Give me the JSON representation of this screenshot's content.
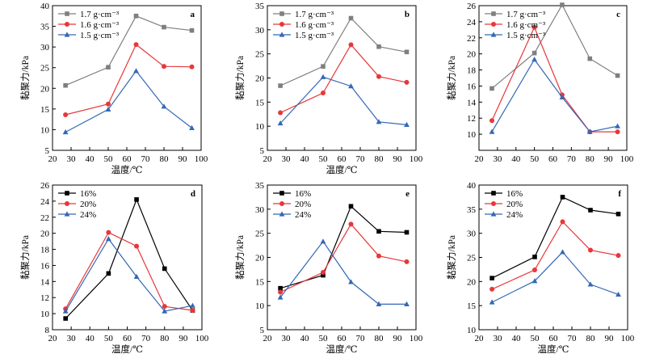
{
  "chart_data": [
    {
      "type": "line",
      "panel": "a",
      "legend_position": "top-left",
      "xlabel": "温度/℃",
      "ylabel": "黏聚力/kPa",
      "xlim": [
        20,
        100
      ],
      "ylim": [
        5,
        40
      ],
      "xticks": [
        20,
        30,
        40,
        50,
        60,
        70,
        80,
        90,
        100
      ],
      "yticks": [
        5,
        10,
        15,
        20,
        25,
        30,
        35,
        40
      ],
      "x": [
        27,
        50,
        65,
        80,
        95
      ],
      "series": [
        {
          "name": "1.7 g·cm⁻³",
          "color": "#7f7f7f",
          "marker": "square",
          "values": [
            20.7,
            25.1,
            37.5,
            34.8,
            34.0
          ]
        },
        {
          "name": "1.6 g·cm⁻³",
          "color": "#e8373a",
          "marker": "circle",
          "values": [
            13.6,
            16.2,
            30.6,
            25.3,
            25.2
          ]
        },
        {
          "name": "1.5 g·cm⁻³",
          "color": "#3468b4",
          "marker": "triangle",
          "values": [
            9.4,
            14.9,
            24.2,
            15.6,
            10.4
          ]
        }
      ]
    },
    {
      "type": "line",
      "panel": "b",
      "legend_position": "top-left",
      "xlabel": "温度/℃",
      "ylabel": "黏聚力/kPa",
      "xlim": [
        20,
        100
      ],
      "ylim": [
        5,
        35
      ],
      "xticks": [
        20,
        30,
        40,
        50,
        60,
        70,
        80,
        90,
        100
      ],
      "yticks": [
        5,
        10,
        15,
        20,
        25,
        30,
        35
      ],
      "x": [
        27,
        50,
        65,
        80,
        95
      ],
      "series": [
        {
          "name": "1.7 g·cm⁻³",
          "color": "#7f7f7f",
          "marker": "square",
          "values": [
            18.4,
            22.4,
            32.4,
            26.5,
            25.4
          ]
        },
        {
          "name": "1.6 g·cm⁻³",
          "color": "#e8373a",
          "marker": "circle",
          "values": [
            12.8,
            16.9,
            26.9,
            20.3,
            19.1
          ]
        },
        {
          "name": "1.5 g·cm⁻³",
          "color": "#3468b4",
          "marker": "triangle",
          "values": [
            10.6,
            20.2,
            18.3,
            10.9,
            10.3
          ]
        }
      ]
    },
    {
      "type": "line",
      "panel": "c",
      "legend_position": "top-left",
      "xlabel": "",
      "ylabel": "黏聚力/kPa",
      "xlim": [
        20,
        100
      ],
      "ylim": [
        8,
        26
      ],
      "xticks": [
        20,
        30,
        40,
        50,
        60,
        70,
        80,
        90,
        100
      ],
      "yticks": [
        10,
        12,
        14,
        16,
        18,
        20,
        22,
        24,
        26
      ],
      "x": [
        27,
        50,
        65,
        80,
        95
      ],
      "series": [
        {
          "name": "1.7 g·cm⁻³",
          "color": "#7f7f7f",
          "marker": "square",
          "values": [
            15.7,
            20.1,
            26.1,
            19.4,
            17.3
          ]
        },
        {
          "name": "1.6 g·cm⁻³",
          "color": "#e8373a",
          "marker": "circle",
          "values": [
            11.7,
            23.3,
            14.9,
            10.3,
            10.3
          ]
        },
        {
          "name": "1.5 g·cm⁻³",
          "color": "#3468b4",
          "marker": "triangle",
          "values": [
            10.3,
            19.3,
            14.6,
            10.3,
            11.0
          ]
        }
      ]
    },
    {
      "type": "line",
      "panel": "d",
      "legend_position": "top-left",
      "xlabel": "温度/℃",
      "ylabel": "黏聚力/kPa",
      "xlim": [
        20,
        100
      ],
      "ylim": [
        8,
        26
      ],
      "xticks": [
        20,
        30,
        40,
        50,
        60,
        70,
        80,
        90,
        100
      ],
      "yticks": [
        8,
        10,
        12,
        14,
        16,
        18,
        20,
        22,
        24,
        26
      ],
      "x": [
        27,
        50,
        65,
        80,
        95
      ],
      "series": [
        {
          "name": "16%",
          "color": "#000000",
          "marker": "square",
          "values": [
            9.4,
            15.0,
            24.2,
            15.6,
            10.4
          ]
        },
        {
          "name": "20%",
          "color": "#e8373a",
          "marker": "circle",
          "values": [
            10.6,
            20.1,
            18.4,
            10.9,
            10.4
          ]
        },
        {
          "name": "24%",
          "color": "#3468b4",
          "marker": "triangle",
          "values": [
            10.3,
            19.3,
            14.6,
            10.3,
            11.0
          ]
        }
      ]
    },
    {
      "type": "line",
      "panel": "e",
      "legend_position": "top-left",
      "xlabel": "温度/℃",
      "ylabel": "黏聚力/kPa",
      "xlim": [
        20,
        100
      ],
      "ylim": [
        5,
        35
      ],
      "xticks": [
        20,
        30,
        40,
        50,
        60,
        70,
        80,
        90,
        100
      ],
      "yticks": [
        5,
        10,
        15,
        20,
        25,
        30,
        35
      ],
      "x": [
        27,
        50,
        65,
        80,
        95
      ],
      "series": [
        {
          "name": "16%",
          "color": "#000000",
          "marker": "square",
          "values": [
            13.6,
            16.3,
            30.6,
            25.4,
            25.2
          ]
        },
        {
          "name": "20%",
          "color": "#e8373a",
          "marker": "circle",
          "values": [
            12.8,
            16.9,
            26.9,
            20.3,
            19.1
          ]
        },
        {
          "name": "24%",
          "color": "#3468b4",
          "marker": "triangle",
          "values": [
            11.7,
            23.3,
            14.9,
            10.3,
            10.3
          ]
        }
      ]
    },
    {
      "type": "line",
      "panel": "f",
      "legend_position": "top-left",
      "xlabel": "温度/℃",
      "ylabel": "黏聚力/kPa",
      "xlim": [
        20,
        100
      ],
      "ylim": [
        10,
        40
      ],
      "xticks": [
        20,
        30,
        40,
        50,
        60,
        70,
        80,
        90,
        100
      ],
      "yticks": [
        10,
        15,
        20,
        25,
        30,
        35,
        40
      ],
      "x": [
        27,
        50,
        65,
        80,
        95
      ],
      "series": [
        {
          "name": "16%",
          "color": "#000000",
          "marker": "square",
          "values": [
            20.7,
            25.1,
            37.5,
            34.8,
            34.0
          ]
        },
        {
          "name": "20%",
          "color": "#e8373a",
          "marker": "circle",
          "values": [
            18.4,
            22.4,
            32.4,
            26.5,
            25.4
          ]
        },
        {
          "name": "24%",
          "color": "#3468b4",
          "marker": "triangle",
          "values": [
            15.7,
            20.1,
            26.1,
            19.4,
            17.3
          ]
        }
      ]
    }
  ]
}
